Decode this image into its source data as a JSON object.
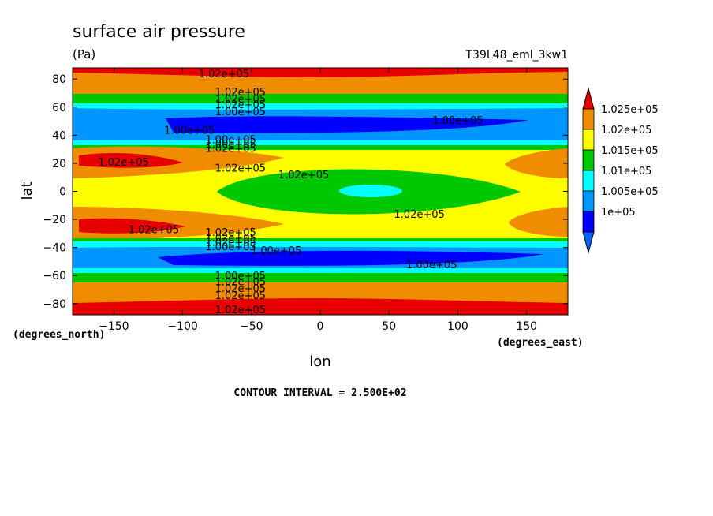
{
  "chart_data": {
    "type": "heatmap",
    "title": "surface air pressure",
    "units": "(Pa)",
    "experiment": "T39L48_eml_3kw1",
    "xlabel": "lon",
    "ylabel": "lat",
    "x_units": "(degrees_east)",
    "y_units": "(degrees_north)",
    "xlim": [
      -180,
      180
    ],
    "ylim": [
      -88,
      88
    ],
    "x_ticks": [
      -150,
      -100,
      -50,
      0,
      50,
      100,
      150
    ],
    "y_ticks": [
      80,
      60,
      40,
      20,
      0,
      -20,
      -40,
      -60,
      -80
    ],
    "colorbar": {
      "levels": [
        {
          "label": "1.025e+05",
          "color": "#f08c00"
        },
        {
          "label": "1.02e+05",
          "color": "#ffff00"
        },
        {
          "label": "1.015e+05",
          "color": "#00c800"
        },
        {
          "label": "1.01e+05",
          "color": "#00ffff"
        },
        {
          "label": "1.005e+05",
          "color": "#0096ff"
        },
        {
          "label": "1e+05",
          "color": "#0000ff"
        }
      ],
      "top_arrow_color": "#e60000",
      "bottom_arrow_color": "#0064ff"
    },
    "contour_interval": "CONTOUR INTERVAL = 2.500E+02",
    "field_features": [
      {
        "kind": "band_high",
        "lat": 84,
        "label": "1.02e+05"
      },
      {
        "kind": "band_high",
        "lat": -84,
        "label": "1.02e+05"
      },
      {
        "kind": "band_low",
        "lat": 47,
        "label": "1.00e+05"
      },
      {
        "kind": "band_low",
        "lat": -47,
        "label": "1.00e+05"
      },
      {
        "kind": "high_cell",
        "lon": -140,
        "lat": 22,
        "label": "1.02e+05"
      },
      {
        "kind": "high_cell",
        "lon": -140,
        "lat": -25,
        "label": "1.02e+05"
      },
      {
        "kind": "equatorial_low",
        "lon": 30,
        "lat": 0,
        "label": "1.02e+05"
      }
    ],
    "contour_labels": [
      {
        "text": "1.02e+05",
        "lon": -70,
        "lat": 84
      },
      {
        "text": "1.02e+05",
        "lon": -58,
        "lat": 71
      },
      {
        "text": "1.02e+05",
        "lon": -58,
        "lat": 66
      },
      {
        "text": "1.02e+05",
        "lon": -58,
        "lat": 62
      },
      {
        "text": "1.00e+05",
        "lon": -58,
        "lat": 57
      },
      {
        "text": "1.00e+05",
        "lon": -95,
        "lat": 44
      },
      {
        "text": "1.00e+05",
        "lon": 100,
        "lat": 51
      },
      {
        "text": "1.00e+05",
        "lon": -65,
        "lat": 37
      },
      {
        "text": "1.00e+05",
        "lon": -65,
        "lat": 34
      },
      {
        "text": "1.02e+05",
        "lon": -65,
        "lat": 31
      },
      {
        "text": "1.02e+05",
        "lon": -143,
        "lat": 21
      },
      {
        "text": "1.02e+05",
        "lon": -58,
        "lat": 17
      },
      {
        "text": "1.02e+05",
        "lon": -12,
        "lat": 12
      },
      {
        "text": "1.02e+05",
        "lon": 72,
        "lat": -16
      },
      {
        "text": "1.02e+05",
        "lon": -121,
        "lat": -27
      },
      {
        "text": "1.02e+05",
        "lon": -65,
        "lat": -29
      },
      {
        "text": "1.02e+05",
        "lon": -65,
        "lat": -33
      },
      {
        "text": "1.02e+05",
        "lon": -65,
        "lat": -36
      },
      {
        "text": "1.00e+05",
        "lon": -65,
        "lat": -39
      },
      {
        "text": "1.00e+05",
        "lon": -32,
        "lat": -42
      },
      {
        "text": "1.00e+05",
        "lon": 81,
        "lat": -52
      },
      {
        "text": "1.00e+05",
        "lon": -58,
        "lat": -60
      },
      {
        "text": "1.02e+05",
        "lon": -58,
        "lat": -64
      },
      {
        "text": "1.02e+05",
        "lon": -58,
        "lat": -69
      },
      {
        "text": "1.02e+05",
        "lon": -58,
        "lat": -74
      },
      {
        "text": "1.02e+05",
        "lon": -58,
        "lat": -84
      }
    ]
  }
}
